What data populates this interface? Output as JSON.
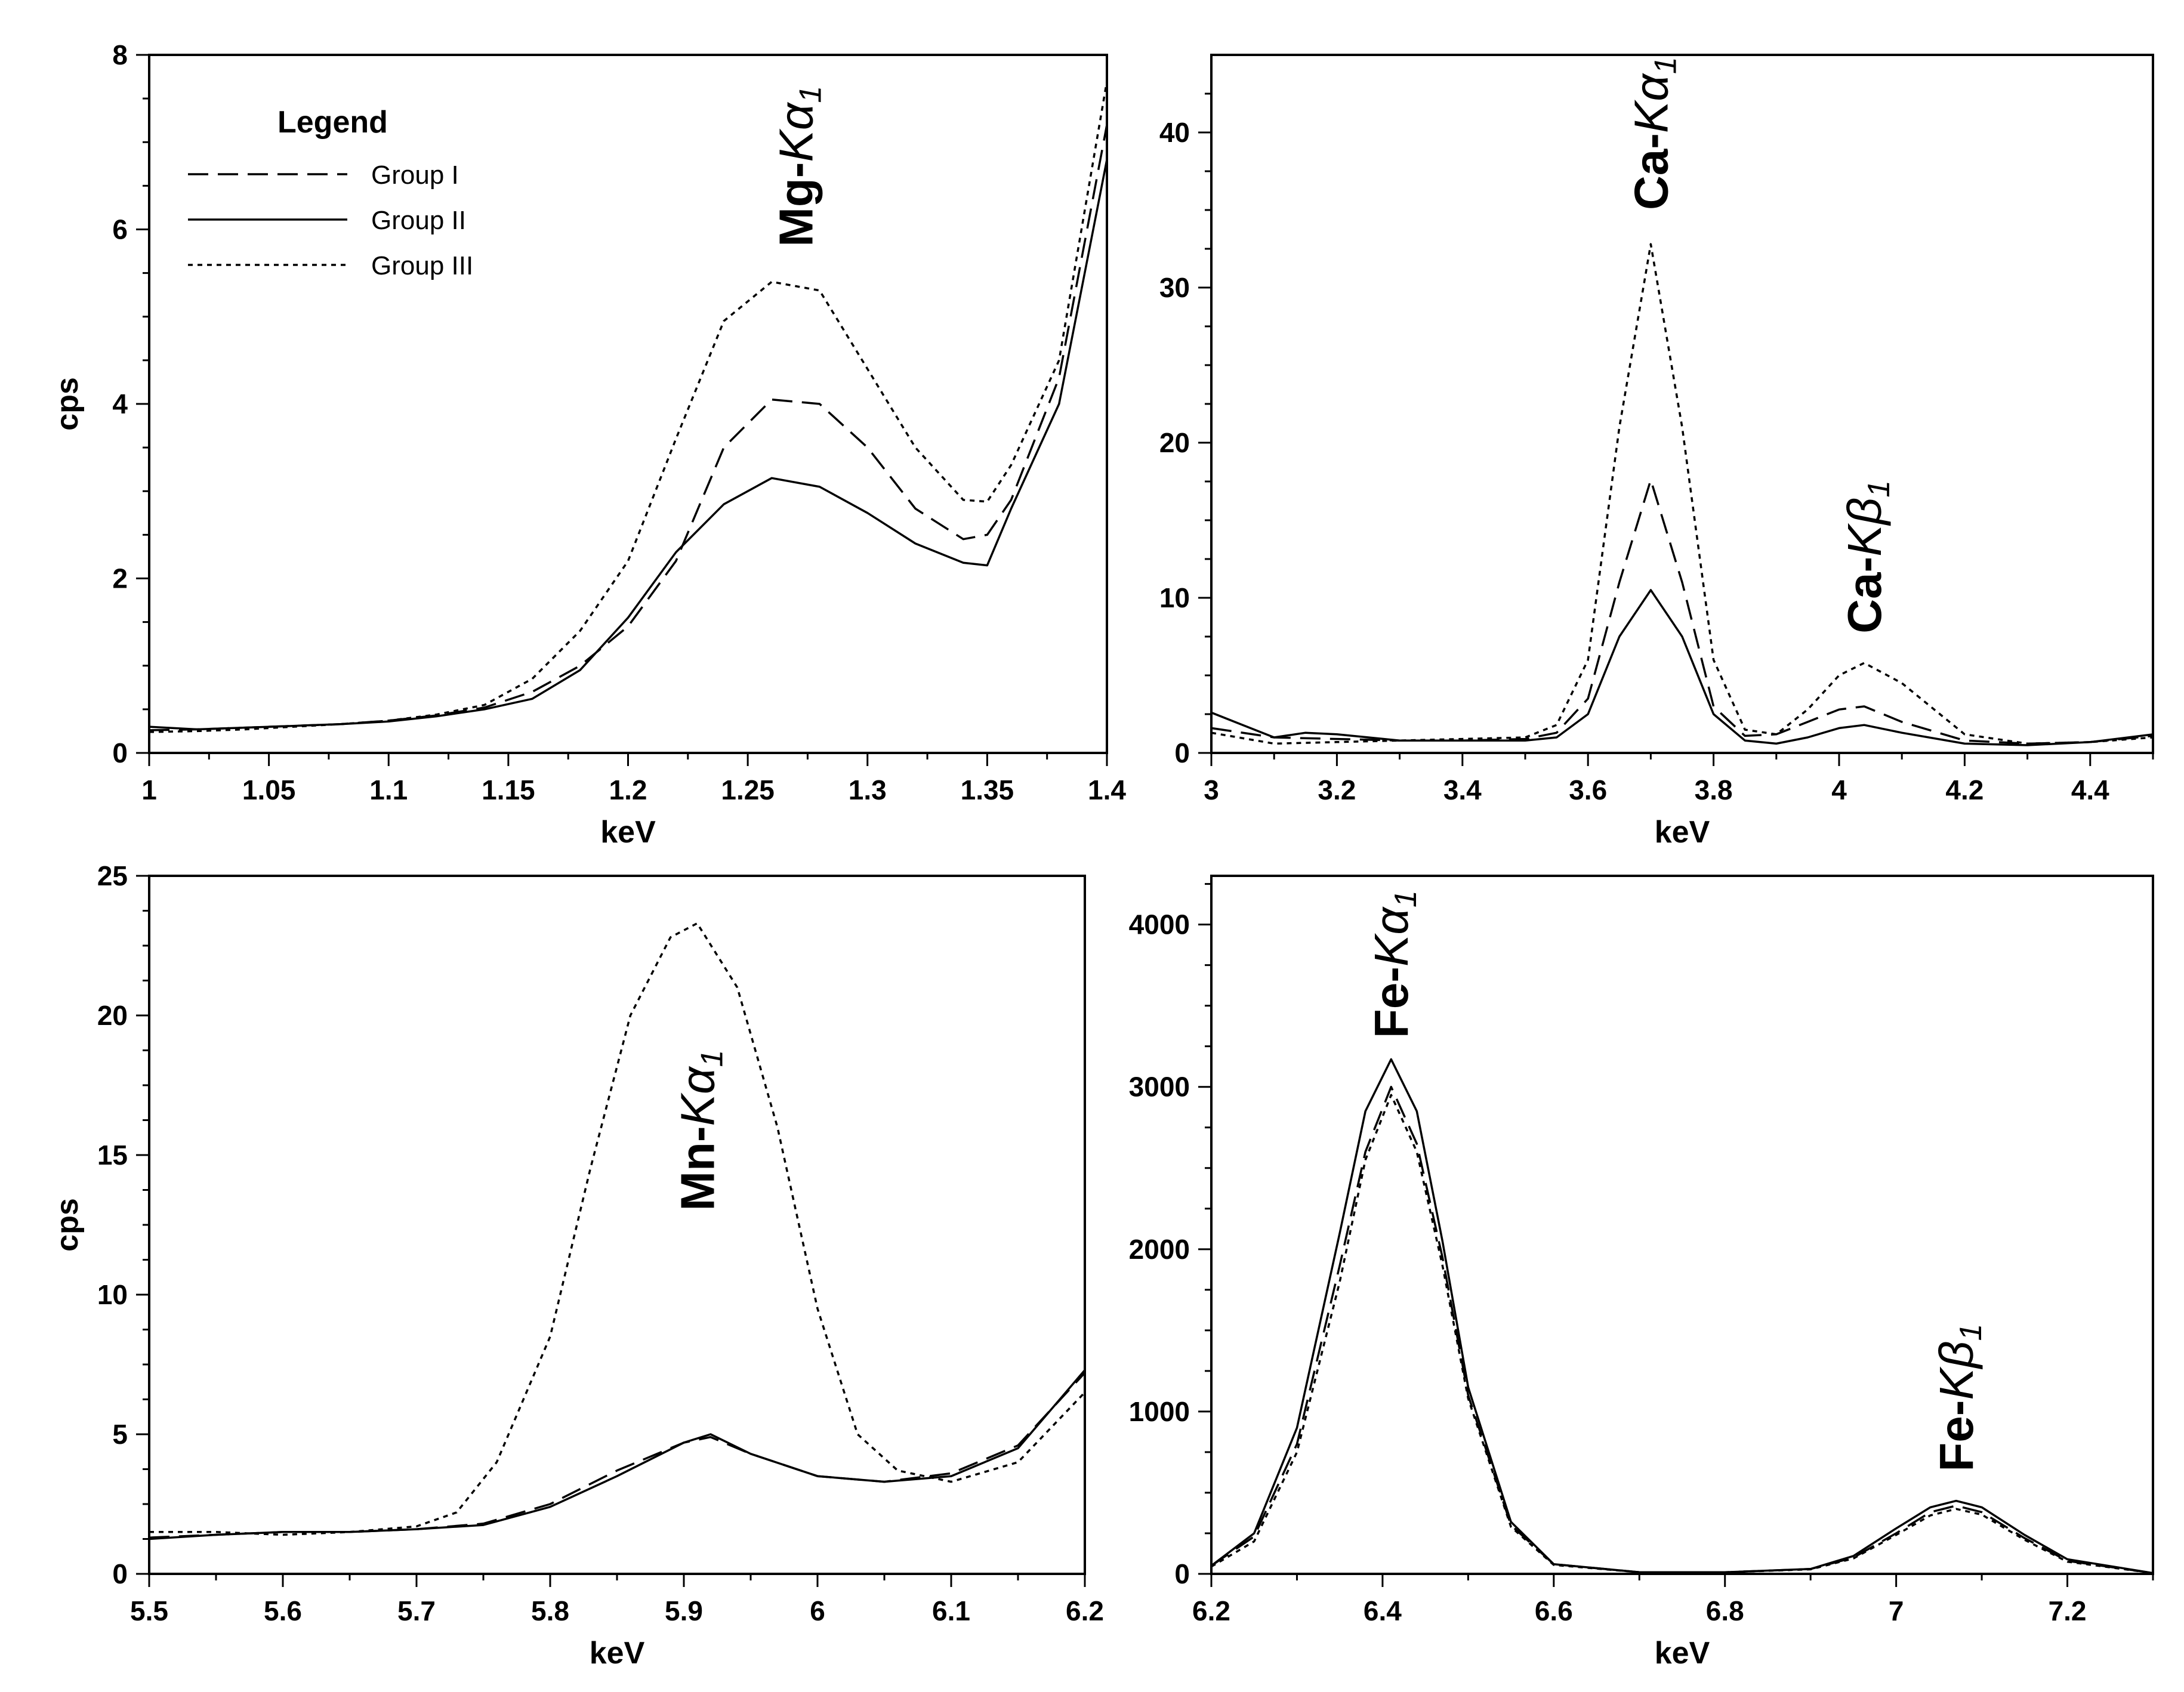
{
  "legend": {
    "title": "Legend",
    "entries": [
      "Group I",
      "Group II",
      "Group III"
    ]
  },
  "chart_data": [
    {
      "type": "line",
      "panel": "top-left",
      "xlabel": "keV",
      "ylabel": "cps",
      "xlim": [
        1.0,
        1.4
      ],
      "ylim": [
        0,
        8
      ],
      "xticks": [
        1,
        1.05,
        1.1,
        1.15,
        1.2,
        1.25,
        1.3,
        1.35,
        1.4
      ],
      "xtick_labels": [
        "1",
        "1.05",
        "1.1",
        "1.15",
        "1.2",
        "1.25",
        "1.3",
        "1.35",
        "1.4"
      ],
      "yticks": [
        0,
        2,
        4,
        6,
        8
      ],
      "ytick_labels": [
        "0",
        "2",
        "4",
        "6",
        "8"
      ],
      "legend_position": "top-left",
      "annotations": [
        {
          "element": "Mg",
          "line": "Kα",
          "sub": "1",
          "x": 1.27,
          "y": 5.8
        }
      ],
      "series": [
        {
          "name": "Group I",
          "x": [
            1.0,
            1.02,
            1.04,
            1.06,
            1.08,
            1.1,
            1.12,
            1.14,
            1.16,
            1.18,
            1.2,
            1.22,
            1.24,
            1.26,
            1.28,
            1.3,
            1.32,
            1.34,
            1.35,
            1.36,
            1.38,
            1.4
          ],
          "values": [
            0.26,
            0.27,
            0.29,
            0.31,
            0.33,
            0.37,
            0.43,
            0.52,
            0.7,
            1.0,
            1.45,
            2.2,
            3.5,
            4.05,
            4.0,
            3.5,
            2.8,
            2.45,
            2.5,
            2.9,
            4.3,
            7.2
          ]
        },
        {
          "name": "Group II",
          "x": [
            1.0,
            1.02,
            1.04,
            1.06,
            1.08,
            1.1,
            1.12,
            1.14,
            1.16,
            1.18,
            1.2,
            1.22,
            1.24,
            1.26,
            1.28,
            1.3,
            1.32,
            1.34,
            1.35,
            1.36,
            1.38,
            1.4
          ],
          "values": [
            0.3,
            0.27,
            0.29,
            0.31,
            0.33,
            0.36,
            0.42,
            0.5,
            0.62,
            0.95,
            1.55,
            2.3,
            2.85,
            3.15,
            3.05,
            2.75,
            2.4,
            2.18,
            2.15,
            2.8,
            4.0,
            6.8
          ]
        },
        {
          "name": "Group III",
          "x": [
            1.0,
            1.02,
            1.04,
            1.06,
            1.08,
            1.1,
            1.12,
            1.14,
            1.16,
            1.18,
            1.2,
            1.22,
            1.24,
            1.26,
            1.28,
            1.3,
            1.32,
            1.34,
            1.35,
            1.36,
            1.38,
            1.4
          ],
          "values": [
            0.24,
            0.25,
            0.27,
            0.3,
            0.33,
            0.37,
            0.44,
            0.55,
            0.85,
            1.4,
            2.2,
            3.6,
            4.95,
            5.4,
            5.3,
            4.4,
            3.5,
            2.9,
            2.88,
            3.3,
            4.5,
            7.7
          ]
        }
      ]
    },
    {
      "type": "line",
      "panel": "top-right",
      "xlabel": "keV",
      "ylabel": "",
      "xlim": [
        3.0,
        4.5
      ],
      "ylim": [
        0,
        45
      ],
      "xticks": [
        3,
        3.2,
        3.4,
        3.6,
        3.8,
        4,
        4.2,
        4.4
      ],
      "xtick_labels": [
        "3",
        "3.2",
        "3.4",
        "3.6",
        "3.8",
        "4",
        "4.2",
        "4.4"
      ],
      "yticks": [
        0,
        10,
        20,
        30,
        40
      ],
      "ytick_labels": [
        "0",
        "10",
        "20",
        "30",
        "40"
      ],
      "annotations": [
        {
          "element": "Ca",
          "line": "Kα",
          "sub": "1",
          "x": 3.7,
          "y": 35
        },
        {
          "element": "Ca",
          "line": "Kβ",
          "sub": "1",
          "x": 4.04,
          "y": 7.7
        }
      ],
      "series": [
        {
          "name": "Group I",
          "x": [
            3.0,
            3.1,
            3.2,
            3.3,
            3.4,
            3.5,
            3.55,
            3.6,
            3.65,
            3.7,
            3.75,
            3.8,
            3.85,
            3.9,
            3.95,
            4.0,
            4.04,
            4.1,
            4.2,
            4.3,
            4.4,
            4.5
          ],
          "values": [
            1.6,
            1.0,
            0.9,
            0.8,
            0.8,
            0.9,
            1.3,
            3.5,
            11.0,
            17.6,
            11.0,
            3.0,
            1.1,
            1.2,
            2.0,
            2.8,
            3.0,
            2.0,
            0.8,
            0.6,
            0.7,
            1.1
          ]
        },
        {
          "name": "Group II",
          "x": [
            3.0,
            3.05,
            3.1,
            3.15,
            3.2,
            3.3,
            3.4,
            3.5,
            3.55,
            3.6,
            3.65,
            3.7,
            3.75,
            3.8,
            3.85,
            3.9,
            3.95,
            4.0,
            4.04,
            4.1,
            4.2,
            4.3,
            4.4,
            4.5
          ],
          "values": [
            2.6,
            1.8,
            1.0,
            1.3,
            1.2,
            0.8,
            0.8,
            0.8,
            1.0,
            2.5,
            7.5,
            10.5,
            7.5,
            2.5,
            0.8,
            0.6,
            1.0,
            1.6,
            1.8,
            1.3,
            0.6,
            0.5,
            0.7,
            1.2
          ]
        },
        {
          "name": "Group III",
          "x": [
            3.0,
            3.1,
            3.2,
            3.3,
            3.4,
            3.5,
            3.55,
            3.6,
            3.65,
            3.7,
            3.75,
            3.8,
            3.85,
            3.9,
            3.95,
            4.0,
            4.04,
            4.1,
            4.2,
            4.3,
            4.4,
            4.5
          ],
          "values": [
            1.3,
            0.6,
            0.7,
            0.8,
            0.9,
            1.0,
            1.8,
            6.0,
            21.0,
            32.8,
            21.0,
            6.0,
            1.5,
            1.2,
            2.8,
            5.0,
            5.8,
            4.5,
            1.2,
            0.6,
            0.7,
            1.0
          ]
        }
      ]
    },
    {
      "type": "line",
      "panel": "bottom-left",
      "xlabel": "keV",
      "ylabel": "cps",
      "xlim": [
        5.5,
        6.2
      ],
      "ylim": [
        0,
        25
      ],
      "xticks": [
        5.5,
        5.6,
        5.7,
        5.8,
        5.9,
        6,
        6.1,
        6.2
      ],
      "xtick_labels": [
        "5.5",
        "5.6",
        "5.7",
        "5.8",
        "5.9",
        "6",
        "6.1",
        "6.2"
      ],
      "yticks": [
        0,
        5,
        10,
        15,
        20,
        25
      ],
      "ytick_labels": [
        "0",
        "5",
        "10",
        "15",
        "20",
        "25"
      ],
      "annotations": [
        {
          "element": "Mn",
          "line": "Kα",
          "sub": "1",
          "x": 5.91,
          "y": 13
        }
      ],
      "series": [
        {
          "name": "Group I",
          "x": [
            5.5,
            5.55,
            5.6,
            5.65,
            5.7,
            5.75,
            5.8,
            5.85,
            5.9,
            5.92,
            5.95,
            6.0,
            6.05,
            6.1,
            6.15,
            6.2
          ],
          "values": [
            1.3,
            1.4,
            1.5,
            1.5,
            1.6,
            1.8,
            2.5,
            3.7,
            4.7,
            4.9,
            4.3,
            3.5,
            3.3,
            3.6,
            4.6,
            7.2
          ]
        },
        {
          "name": "Group II",
          "x": [
            5.5,
            5.55,
            5.6,
            5.65,
            5.7,
            5.75,
            5.8,
            5.85,
            5.9,
            5.92,
            5.95,
            6.0,
            6.05,
            6.1,
            6.15,
            6.2
          ],
          "values": [
            1.25,
            1.4,
            1.5,
            1.5,
            1.6,
            1.75,
            2.4,
            3.5,
            4.7,
            5.0,
            4.3,
            3.5,
            3.3,
            3.5,
            4.5,
            7.3
          ]
        },
        {
          "name": "Group III",
          "x": [
            5.5,
            5.55,
            5.6,
            5.65,
            5.7,
            5.73,
            5.76,
            5.8,
            5.83,
            5.86,
            5.89,
            5.91,
            5.94,
            5.97,
            6.0,
            6.03,
            6.06,
            6.1,
            6.15,
            6.2
          ],
          "values": [
            1.5,
            1.5,
            1.4,
            1.5,
            1.7,
            2.2,
            4.0,
            8.5,
            14.5,
            20.0,
            22.8,
            23.3,
            21.0,
            16.0,
            9.5,
            5.0,
            3.7,
            3.3,
            4.0,
            6.5
          ]
        }
      ]
    },
    {
      "type": "line",
      "panel": "bottom-right",
      "xlabel": "keV",
      "ylabel": "",
      "xlim": [
        6.2,
        7.3
      ],
      "ylim": [
        0,
        4300
      ],
      "xticks": [
        6.2,
        6.4,
        6.6,
        6.8,
        7,
        7.2
      ],
      "xtick_labels": [
        "6.2",
        "6.4",
        "6.6",
        "6.8",
        "7",
        "7.2"
      ],
      "yticks": [
        0,
        1000,
        2000,
        3000,
        4000
      ],
      "ytick_labels": [
        "0",
        "1000",
        "2000",
        "3000",
        "4000"
      ],
      "annotations": [
        {
          "element": "Fe",
          "line": "Kα",
          "sub": "1",
          "x": 6.41,
          "y": 3300
        },
        {
          "element": "Fe",
          "line": "Kβ",
          "sub": "1",
          "x": 7.07,
          "y": 630
        }
      ],
      "series": [
        {
          "name": "Group I",
          "x": [
            6.2,
            6.25,
            6.3,
            6.35,
            6.38,
            6.41,
            6.44,
            6.47,
            6.5,
            6.55,
            6.6,
            6.7,
            6.8,
            6.9,
            6.95,
            7.0,
            7.04,
            7.07,
            7.1,
            7.15,
            7.2,
            7.3
          ],
          "values": [
            50,
            230,
            800,
            1900,
            2600,
            3000,
            2650,
            1950,
            1100,
            300,
            60,
            10,
            10,
            30,
            100,
            250,
            380,
            420,
            380,
            220,
            80,
            5
          ]
        },
        {
          "name": "Group II",
          "x": [
            6.2,
            6.25,
            6.3,
            6.35,
            6.38,
            6.41,
            6.44,
            6.47,
            6.5,
            6.55,
            6.6,
            6.7,
            6.8,
            6.9,
            6.95,
            7.0,
            7.04,
            7.07,
            7.1,
            7.15,
            7.2,
            7.3
          ],
          "values": [
            50,
            250,
            900,
            2100,
            2850,
            3170,
            2850,
            2050,
            1150,
            320,
            60,
            10,
            10,
            30,
            110,
            280,
            410,
            450,
            410,
            240,
            90,
            5
          ]
        },
        {
          "name": "Group III",
          "x": [
            6.2,
            6.25,
            6.3,
            6.35,
            6.38,
            6.41,
            6.44,
            6.47,
            6.5,
            6.55,
            6.6,
            6.7,
            6.8,
            6.9,
            6.95,
            7.0,
            7.04,
            7.07,
            7.1,
            7.15,
            7.2,
            7.3
          ],
          "values": [
            45,
            200,
            750,
            1800,
            2550,
            2950,
            2600,
            1900,
            1080,
            290,
            55,
            10,
            10,
            28,
            95,
            240,
            360,
            400,
            365,
            210,
            75,
            5
          ]
        }
      ]
    }
  ]
}
